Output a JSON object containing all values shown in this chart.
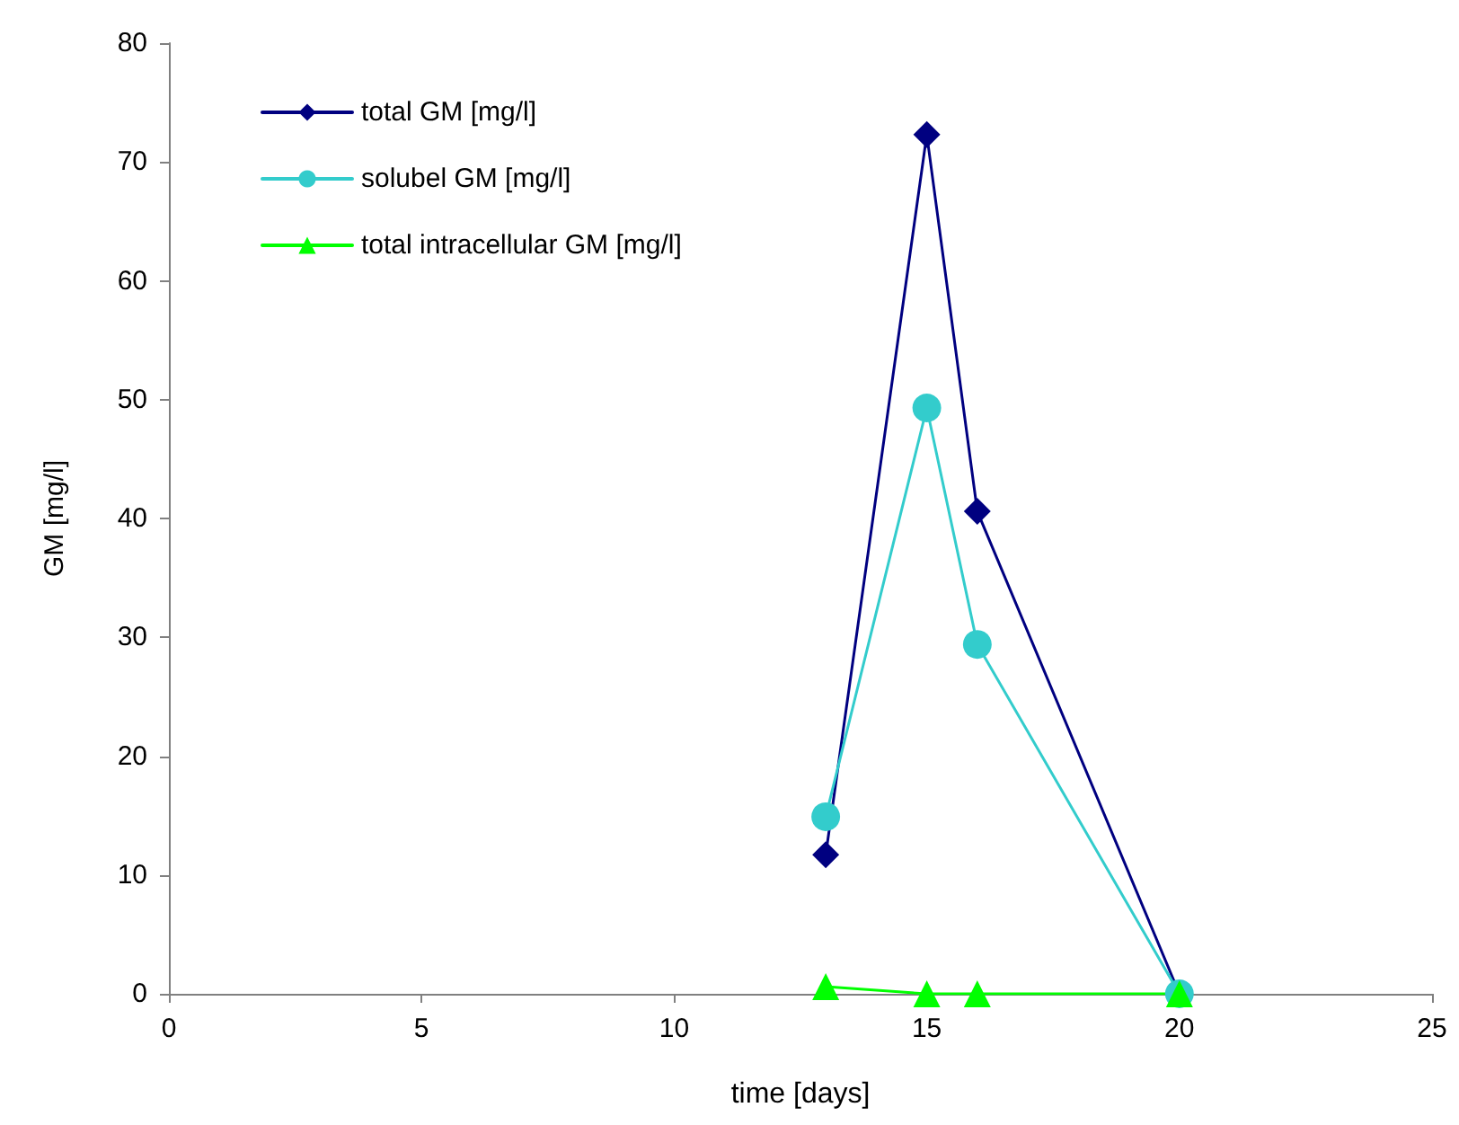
{
  "chart_data": {
    "type": "line",
    "xlabel": "time [days]",
    "ylabel": "GM [mg/l]",
    "xlim": [
      0,
      25
    ],
    "xticks": [
      0,
      5,
      10,
      15,
      20,
      25
    ],
    "ylim": [
      0,
      80
    ],
    "yticks": [
      0,
      10,
      20,
      30,
      40,
      50,
      60,
      70,
      80
    ],
    "grid": false,
    "legend": "top left",
    "line_style": "solid",
    "series": [
      {
        "name": "total GM [mg/l]",
        "color": "#000080",
        "marker": "diamond",
        "x": [
          13,
          15,
          16,
          20
        ],
        "values": [
          11.7,
          72.3,
          40.6,
          0
        ]
      },
      {
        "name": "solubel GM [mg/l]",
        "color": "#33cccc",
        "marker": "circle",
        "x": [
          13,
          15,
          16,
          20
        ],
        "values": [
          14.9,
          49.3,
          29.4,
          0
        ]
      },
      {
        "name": "total intracellular GM [mg/l]",
        "color": "#00ff00",
        "marker": "triangle",
        "x": [
          13,
          15,
          16,
          20
        ],
        "values": [
          0.6,
          0,
          0,
          0
        ]
      }
    ]
  }
}
